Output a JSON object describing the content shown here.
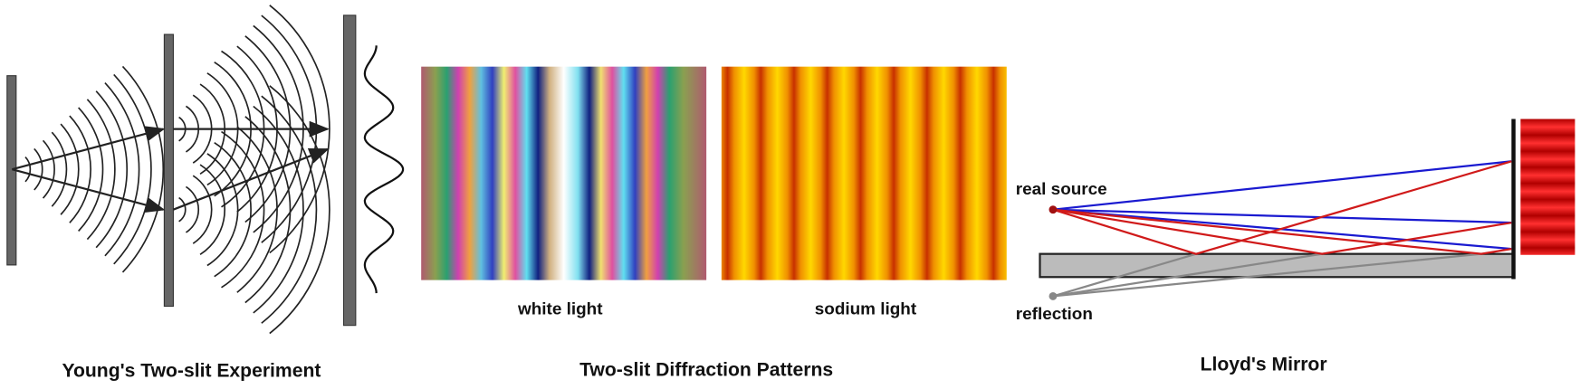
{
  "panels": [
    {
      "title": "Young's Two-slit Experiment"
    },
    {
      "title": "Two-slit Diffraction Patterns",
      "patterns": [
        {
          "label": "white light"
        },
        {
          "label": "sodium light"
        }
      ]
    },
    {
      "title": "Lloyd's Mirror",
      "source_label": "real source",
      "image_label": "reflection"
    }
  ]
}
